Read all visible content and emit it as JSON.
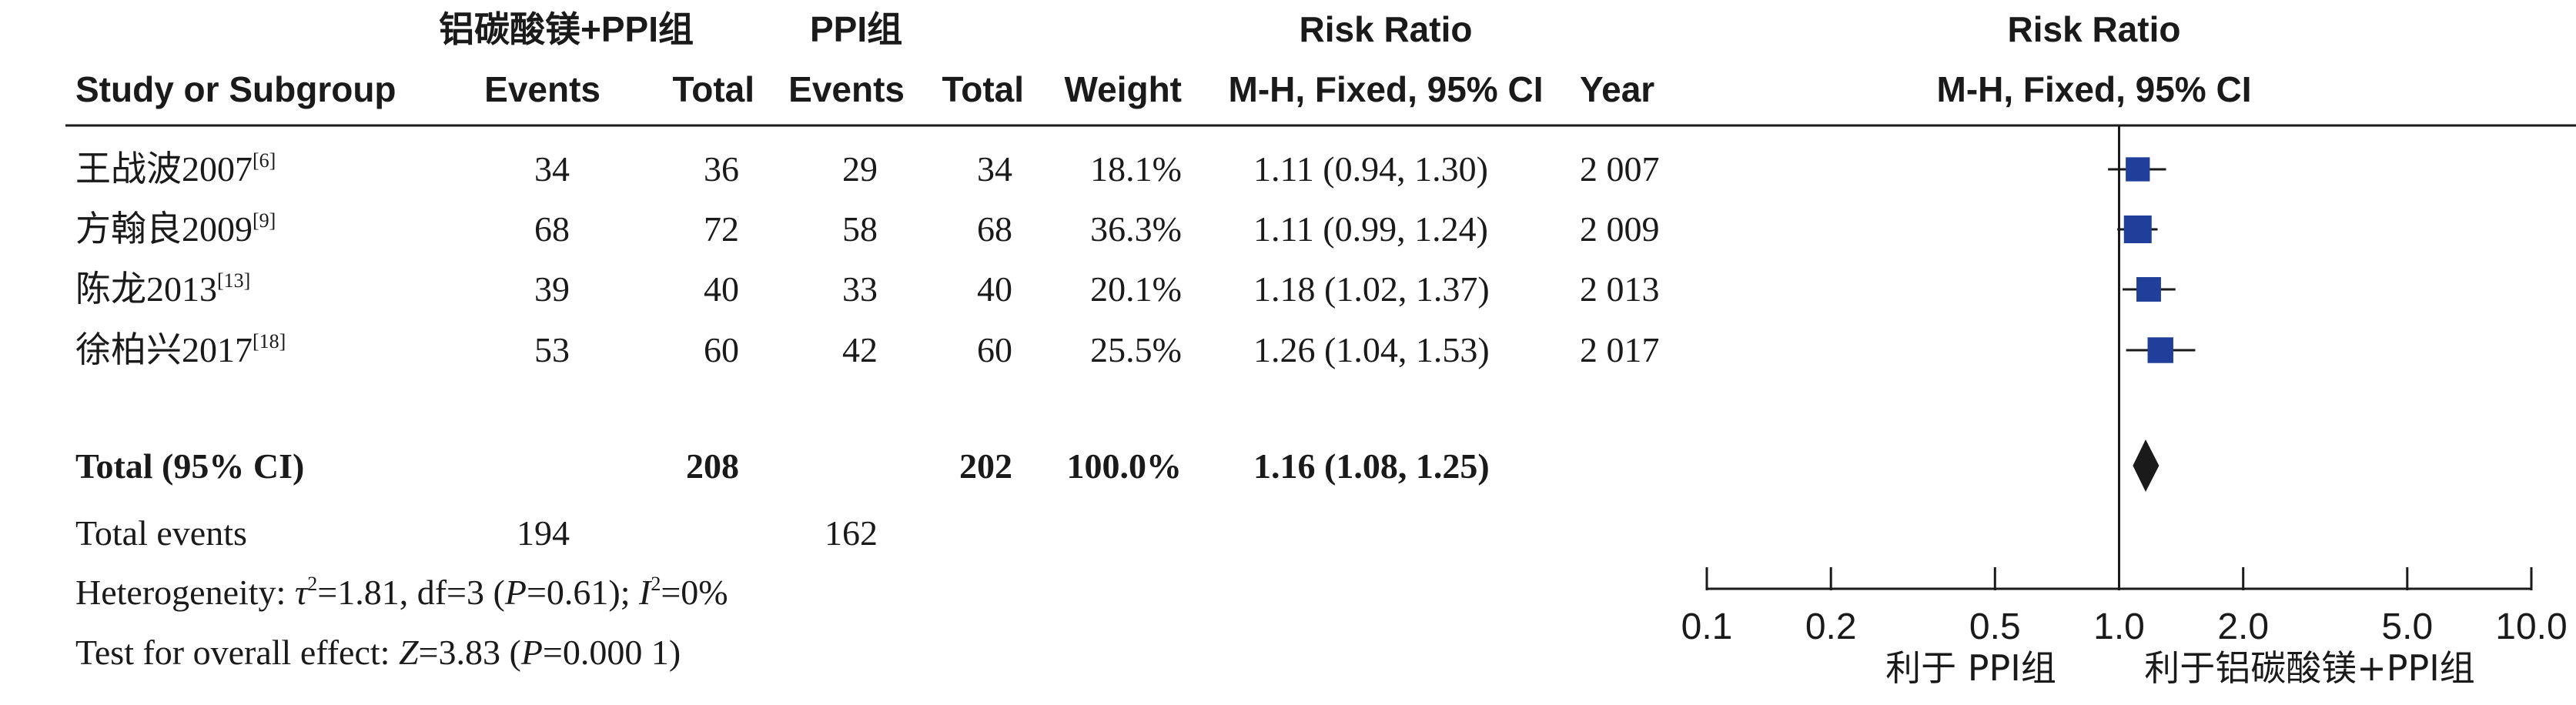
{
  "chart_data": {
    "type": "forest",
    "columns": {
      "study": "Study or Subgroup",
      "group1": "铝碳酸镁+PPI组",
      "group2": "PPI组",
      "events": "Events",
      "total": "Total",
      "weight": "Weight",
      "rr_title": "Risk Ratio",
      "rr_method": "M-H, Fixed, 95% CI",
      "year": "Year",
      "plot_title": "Risk Ratio",
      "plot_method": "M-H, Fixed, 95% CI"
    },
    "studies": [
      {
        "name": "王战波2007",
        "ref": "[6]",
        "e1": "34",
        "n1": "36",
        "e2": "29",
        "n2": "34",
        "weight": "18.1%",
        "ci_text": "1.11 (0.94, 1.30)",
        "year": "2 007",
        "rr": 1.11,
        "lo": 0.94,
        "hi": 1.3,
        "w": 18.1
      },
      {
        "name": "方翰良2009",
        "ref": "[9]",
        "e1": "68",
        "n1": "72",
        "e2": "58",
        "n2": "68",
        "weight": "36.3%",
        "ci_text": "1.11 (0.99, 1.24)",
        "year": "2 009",
        "rr": 1.11,
        "lo": 0.99,
        "hi": 1.24,
        "w": 36.3
      },
      {
        "name": "陈龙2013",
        "ref": "[13]",
        "e1": "39",
        "n1": "40",
        "e2": "33",
        "n2": "40",
        "weight": "20.1%",
        "ci_text": "1.18 (1.02, 1.37)",
        "year": "2 013",
        "rr": 1.18,
        "lo": 1.02,
        "hi": 1.37,
        "w": 20.1
      },
      {
        "name": "徐柏兴2017",
        "ref": "[18]",
        "e1": "53",
        "n1": "60",
        "e2": "42",
        "n2": "60",
        "weight": "25.5%",
        "ci_text": "1.26 (1.04, 1.53)",
        "year": "2 017",
        "rr": 1.26,
        "lo": 1.04,
        "hi": 1.53,
        "w": 25.5
      }
    ],
    "total": {
      "label": "Total (95% CI)",
      "n1": "208",
      "n2": "202",
      "weight": "100.0%",
      "ci_text": "1.16 (1.08, 1.25)",
      "rr": 1.16,
      "lo": 1.08,
      "hi": 1.25
    },
    "total_events": {
      "label": "Total events",
      "e1": "194",
      "e2": "162"
    },
    "heterogeneity": {
      "prefix": "Heterogeneity: ",
      "tau": "τ",
      "tau_rest": "=1.81, df=3 (",
      "p_sym": "P",
      "p_rest": "=0.61); ",
      "i_sym": "I",
      "i_rest": "=0%",
      "sup": "2"
    },
    "overall_effect": {
      "prefix": "Test for overall effect: ",
      "z_sym": "Z",
      "z_rest": "=3.83 (",
      "p_sym": "P",
      "p_rest": "=0.000 1)"
    },
    "axis": {
      "scale": "log",
      "range": [
        0.1,
        10.0
      ],
      "ticks": [
        0.1,
        0.2,
        0.5,
        1.0,
        2.0,
        5.0,
        10.0
      ],
      "tick_labels": [
        "0.1",
        "0.2",
        "0.5",
        "1.0",
        "2.0",
        "5.0",
        "10.0"
      ],
      "favours_left": "利于 PPI组",
      "favours_right": "利于铝碳酸镁+PPI组"
    },
    "colors": {
      "marker": "#1f3f9a",
      "diamond": "#1a1a1a",
      "line": "#1a1a1a"
    }
  }
}
